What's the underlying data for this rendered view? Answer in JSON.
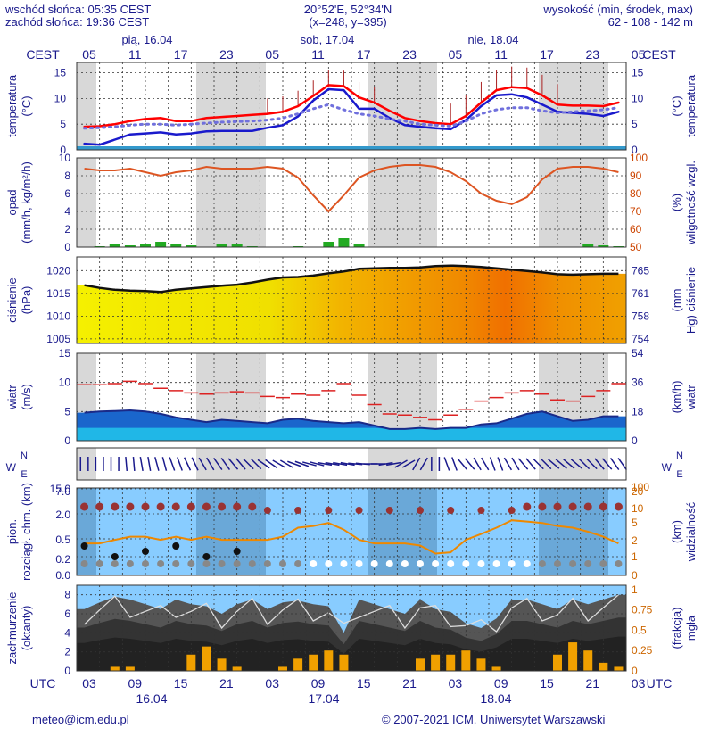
{
  "header": {
    "sunrise": "wschód słońca: 05:35 CEST",
    "sunset": "zachód słońca: 19:36 CEST",
    "coords": "20°52'E, 52°34'N",
    "grid": "(x=248, y=395)",
    "elev_title": "wysokość (min, środek, max)",
    "elev_values": "62 - 108 - 142 m"
  },
  "footer": {
    "email": "meteo@icm.edu.pl",
    "copyright": "© 2007-2021 ICM, Uniwersytet Warszawski"
  },
  "top_axis": {
    "tz": "CEST",
    "day_labels": [
      "pią, 16.04",
      "sob, 17.04",
      "nie, 18.04"
    ],
    "hour_labels": [
      "05",
      "11",
      "17",
      "23",
      "05",
      "11",
      "17",
      "23",
      "05",
      "11",
      "17",
      "23",
      "05"
    ]
  },
  "bottom_axis": {
    "tz": "UTC",
    "hour_labels": [
      "03",
      "09",
      "15",
      "21",
      "03",
      "09",
      "15",
      "21",
      "03",
      "09",
      "15",
      "21",
      "03"
    ],
    "date_labels": [
      "16.04",
      "17.04",
      "18.04"
    ]
  },
  "chart_data": [
    {
      "id": "temperature",
      "type": "line",
      "ylabel_left": "temperatura (°C)",
      "ylabel_right": "(°C) temperatura",
      "yticks": [
        0,
        5,
        10,
        15
      ],
      "ylim": [
        0,
        17
      ],
      "series": [
        {
          "color": "#ff0000",
          "values": [
            4.5,
            4.6,
            5.0,
            5.6,
            6.0,
            6.2,
            5.6,
            5.6,
            6.2,
            6.4,
            6.6,
            6.8,
            7.0,
            7.4,
            8.5,
            10.5,
            12.6,
            12.4,
            10.2,
            9.2,
            7.6,
            6.2,
            5.6,
            5.2,
            5.0,
            6.6,
            9.2,
            11.6,
            12.2,
            12.0,
            10.6,
            8.8,
            8.6,
            8.6,
            8.5,
            9.2
          ]
        },
        {
          "color": "#1a1acc",
          "values": [
            1.2,
            1.0,
            2.0,
            3.0,
            3.2,
            3.4,
            3.0,
            3.2,
            3.6,
            3.7,
            3.7,
            3.7,
            4.3,
            4.8,
            6.5,
            9.6,
            11.8,
            11.6,
            8.0,
            8.0,
            6.2,
            4.8,
            4.5,
            4.2,
            4.0,
            5.8,
            8.5,
            10.6,
            10.8,
            10.2,
            8.8,
            7.4,
            7.2,
            7.0,
            6.6,
            7.4
          ]
        },
        {
          "color": "#7070dd",
          "dotted": true,
          "values": [
            4.2,
            4.3,
            4.5,
            4.8,
            5.0,
            5.0,
            4.8,
            5.0,
            5.2,
            5.4,
            5.5,
            5.6,
            5.8,
            6.2,
            7.0,
            8.0,
            8.8,
            7.8,
            7.0,
            6.6,
            6.0,
            5.6,
            5.0,
            4.8,
            4.6,
            5.6,
            7.0,
            7.8,
            8.2,
            8.2,
            7.6,
            7.2,
            7.4,
            7.6,
            7.8,
            8.2
          ]
        }
      ]
    },
    {
      "id": "precip_humidity",
      "type": "line+bar",
      "ylabel_left": "opad (mm/h, kg/m²/h)",
      "ylabel_right": "(%) wilgotność wzgl.",
      "yticks_left": [
        0,
        2,
        4,
        6,
        8,
        10
      ],
      "yticks_right": [
        50,
        60,
        70,
        80,
        90,
        100
      ],
      "humidity": [
        94,
        93,
        93,
        94,
        92,
        90,
        92,
        93,
        95,
        94,
        94,
        94,
        95,
        94,
        89,
        79,
        70,
        79,
        89,
        93,
        95,
        96,
        96,
        95,
        92,
        87,
        80,
        76,
        74,
        78,
        88,
        94,
        95,
        95,
        94,
        92
      ],
      "precip": [
        0,
        0.1,
        0.4,
        0.2,
        0.3,
        0.6,
        0.4,
        0.2,
        0,
        0.3,
        0.4,
        0.1,
        0,
        0,
        0.1,
        0,
        0.6,
        1.0,
        0.3,
        0,
        0,
        0,
        0,
        0,
        0,
        0,
        0,
        0,
        0,
        0,
        0,
        0,
        0,
        0.3,
        0.2,
        0.1
      ]
    },
    {
      "id": "pressure",
      "type": "area",
      "ylabel_left": "ciśnienie (hPa)",
      "ylabel_right": "(mm Hg) ciśnienie",
      "yticks_left": [
        1005,
        1010,
        1015,
        1020
      ],
      "yticks_right": [
        "754",
        "758",
        "761",
        "765"
      ],
      "ylim": [
        1004,
        1023
      ],
      "values": [
        1016.8,
        1016.2,
        1015.8,
        1015.6,
        1015.5,
        1015.3,
        1015.8,
        1016.1,
        1016.4,
        1016.7,
        1016.9,
        1017.4,
        1018.0,
        1018.5,
        1018.6,
        1018.9,
        1019.4,
        1019.8,
        1020.4,
        1020.5,
        1020.6,
        1020.6,
        1020.7,
        1021.0,
        1021.1,
        1021.0,
        1020.8,
        1020.5,
        1020.2,
        1019.9,
        1019.6,
        1019.2,
        1019.1,
        1019.2,
        1019.3,
        1019.3
      ]
    },
    {
      "id": "wind",
      "type": "area+line",
      "ylabel_left": "wiatr (m/s)",
      "ylabel_right": "(km/h) wiatr",
      "yticks_left": [
        0,
        5,
        10,
        15
      ],
      "yticks_right": [
        "0",
        "18",
        "36",
        "54"
      ],
      "ylim": [
        0,
        15
      ],
      "speed": [
        4.8,
        5.0,
        5.1,
        5.2,
        5.0,
        4.6,
        4.0,
        3.6,
        3.2,
        3.6,
        3.4,
        3.2,
        3.0,
        3.6,
        3.8,
        3.4,
        3.2,
        3.0,
        3.2,
        2.6,
        2.0,
        2.0,
        2.2,
        2.0,
        2.2,
        2.2,
        2.8,
        3.0,
        3.8,
        4.6,
        5.0,
        4.2,
        3.4,
        3.6,
        4.2,
        4.2
      ],
      "gust": [
        9.6,
        9.6,
        9.8,
        10.2,
        9.8,
        9.0,
        8.6,
        8.2,
        8.0,
        8.2,
        8.4,
        8.2,
        7.6,
        7.4,
        8.0,
        7.8,
        8.6,
        9.8,
        7.8,
        6.2,
        4.6,
        4.4,
        4.0,
        3.6,
        4.4,
        5.4,
        6.8,
        7.4,
        8.2,
        8.6,
        8.0,
        7.0,
        6.8,
        7.6,
        8.6,
        9.8
      ]
    },
    {
      "id": "cloud_visibility",
      "type": "scatter+line",
      "ylabel_left": "pion. rozciągł. chm. (km)",
      "ylabel_right": "(km) widzialność",
      "yticks_left": [
        "0.0",
        "0.2",
        "0.5",
        "2.0",
        "7.0",
        "15.0"
      ],
      "yticks_right": [
        "0",
        "1",
        "2",
        "5",
        "10",
        "20",
        "100"
      ],
      "visibility": [
        4,
        4,
        5,
        6,
        6,
        5,
        6,
        5,
        6,
        5,
        5,
        5,
        5,
        6,
        10,
        11,
        13,
        9,
        5,
        4,
        4,
        4,
        3.5,
        2,
        2.2,
        5,
        7,
        10,
        15,
        14,
        13,
        11,
        10,
        8,
        6,
        4
      ]
    },
    {
      "id": "cloudiness",
      "type": "area+bar",
      "ylabel_left": "zachmurzenie (oktanty)",
      "ylabel_right": "(frakcja) mgła",
      "yticks_left": [
        0,
        2,
        4,
        6,
        8
      ],
      "yticks_right": [
        "0",
        "0.25",
        "0.5",
        "0.75",
        "1"
      ],
      "total": [
        6.5,
        7.2,
        7.8,
        7.5,
        7.0,
        6.5,
        7.5,
        7.0,
        6.8,
        6.0,
        7.0,
        7.5,
        6.5,
        7.2,
        7.4,
        7.0,
        6.8,
        4.0,
        7.5,
        7.0,
        6.5,
        6.0,
        7.5,
        6.5,
        6.2,
        5.0,
        4.5,
        5.5,
        7.5,
        7.5,
        7.0,
        6.5,
        7.5,
        7.0,
        7.5,
        8.0
      ],
      "fog": [
        0,
        0,
        0.05,
        0.05,
        0,
        0,
        0,
        0.2,
        0.3,
        0.15,
        0.05,
        0,
        0,
        0.05,
        0.15,
        0.2,
        0.25,
        0.2,
        0,
        0,
        0,
        0,
        0.15,
        0.2,
        0.2,
        0.25,
        0.15,
        0.05,
        0,
        0,
        0,
        0.2,
        0.35,
        0.25,
        0.1,
        0.05
      ]
    }
  ]
}
